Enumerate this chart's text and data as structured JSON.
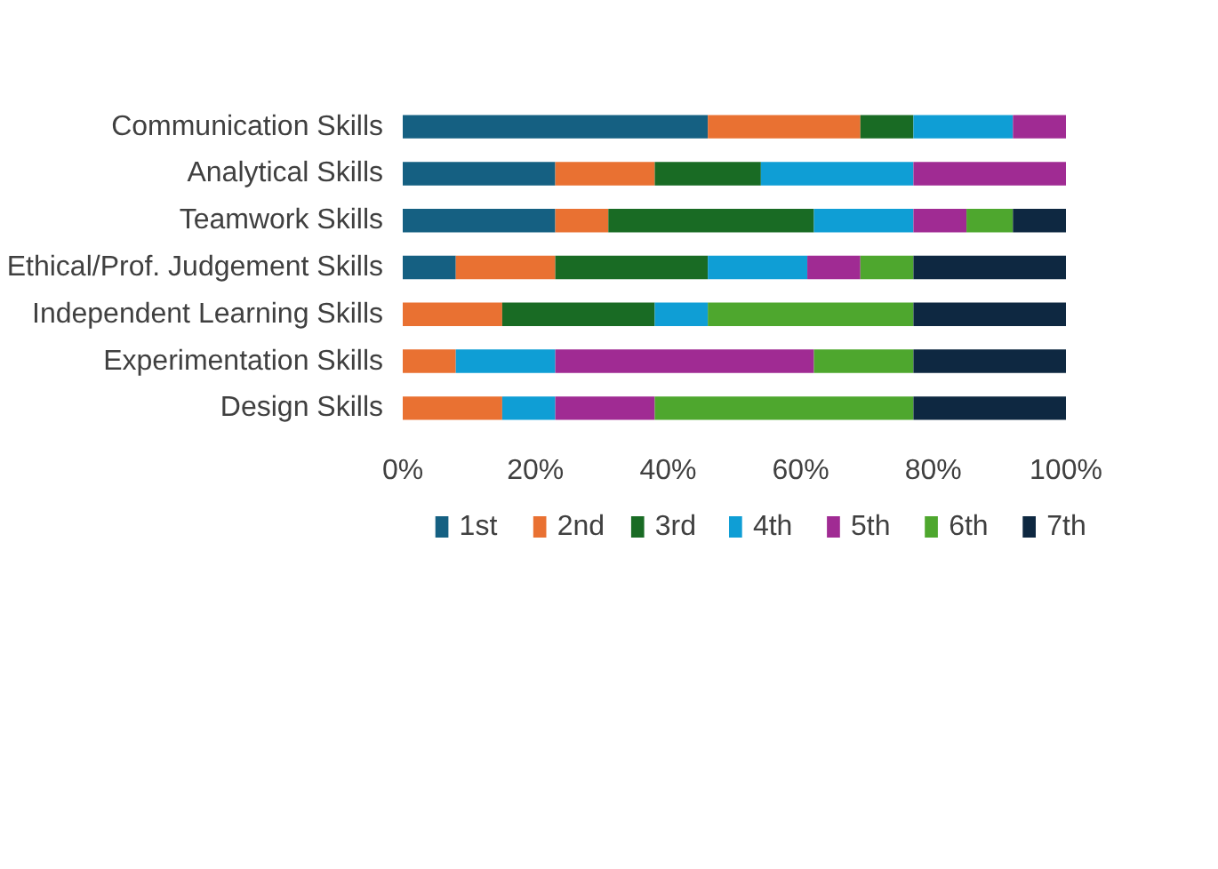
{
  "chart_data": {
    "type": "bar",
    "orientation": "horizontal",
    "stacked": true,
    "legend": "bottom",
    "grid": false,
    "categories": [
      "Communication Skills",
      "Analytical Skills",
      "Teamwork Skills",
      "Ethical/Prof. Judgement Skills",
      "Independent Learning Skills",
      "Experimentation Skills",
      "Design Skills"
    ],
    "xlim": [
      0,
      100
    ],
    "xticks": [
      {
        "value": 0,
        "label": "0%"
      },
      {
        "value": 20,
        "label": "20%"
      },
      {
        "value": 40,
        "label": "40%"
      },
      {
        "value": 60,
        "label": "60%"
      },
      {
        "value": 80,
        "label": "80%"
      },
      {
        "value": 100,
        "label": "100%"
      }
    ],
    "series": [
      {
        "name": "1st",
        "color": "#156082",
        "values": [
          46,
          23,
          23,
          8,
          0,
          0,
          0
        ]
      },
      {
        "name": "2nd",
        "color": "#e97132",
        "values": [
          23,
          15,
          8,
          15,
          15,
          8,
          15
        ]
      },
      {
        "name": "3rd",
        "color": "#196b24",
        "values": [
          8,
          16,
          31,
          23,
          23,
          0,
          0
        ]
      },
      {
        "name": "4th",
        "color": "#0f9ed5",
        "values": [
          15,
          23,
          15,
          15,
          8,
          15,
          8
        ]
      },
      {
        "name": "5th",
        "color": "#a02b93",
        "values": [
          8,
          23,
          8,
          8,
          0,
          39,
          15
        ]
      },
      {
        "name": "6th",
        "color": "#4ea72e",
        "values": [
          0,
          0,
          7,
          8,
          31,
          15,
          39
        ]
      },
      {
        "name": "7th",
        "color": "#0e2841",
        "values": [
          0,
          0,
          8,
          23,
          23,
          23,
          23
        ]
      }
    ]
  }
}
